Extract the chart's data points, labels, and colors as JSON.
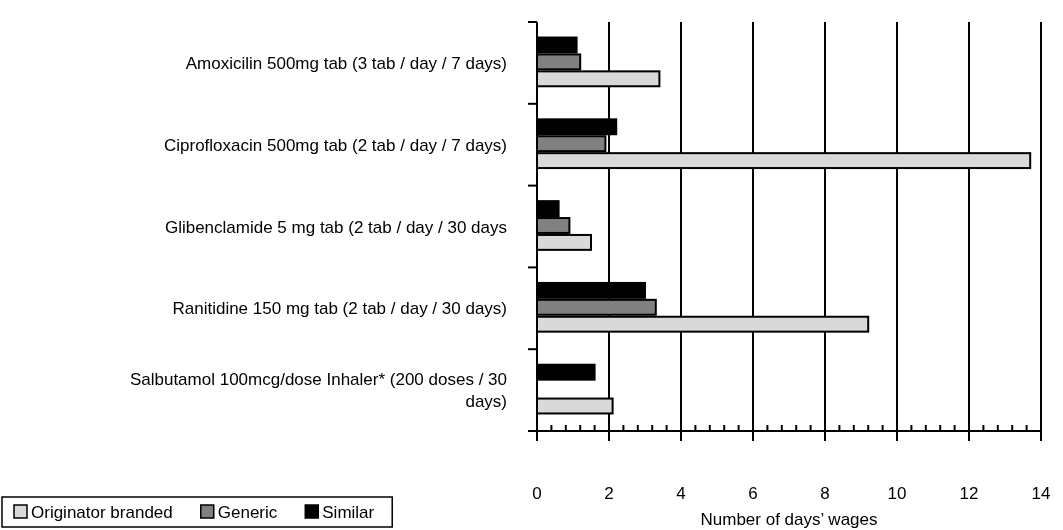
{
  "chart_data": {
    "type": "bar",
    "orientation": "horizontal",
    "xlabel": "Number of days’ wages",
    "categories": [
      "Amoxicilin 500mg tab (3 tab / day / 7 days)",
      "Ciprofloxacin 500mg tab (2 tab / day / 7 days)",
      "Glibenclamide 5 mg tab (2 tab / day / 30 days",
      "Ranitidine 150 mg tab (2 tab / day / 30 days)",
      "Salbutamol 100mcg/dose Inhaler* (200 doses / 30 days)"
    ],
    "series": [
      {
        "name": "Originator branded",
        "color": "#d9d9d9",
        "values": [
          3.4,
          13.7,
          1.5,
          9.2,
          2.1
        ]
      },
      {
        "name": "Generic",
        "color": "#808080",
        "values": [
          1.2,
          1.9,
          0.9,
          3.3,
          null
        ]
      },
      {
        "name": "Similar",
        "color": "#000000",
        "values": [
          1.1,
          2.2,
          0.6,
          3.0,
          1.6
        ]
      }
    ],
    "xlim": [
      0,
      14
    ],
    "xticks": [
      0,
      {
        "value": 0.4,
        "label": null
      },
      {
        "value": 0.8,
        "label": null
      },
      {
        "value": 1.2,
        "label": null
      },
      {
        "value": 1.6,
        "label": null
      },
      2,
      {
        "value": 2.4,
        "label": null
      },
      {
        "value": 2.8,
        "label": null
      },
      {
        "value": 3.2,
        "label": null
      },
      {
        "value": 3.6,
        "label": null
      },
      4,
      {
        "value": 4.4,
        "label": null
      },
      {
        "value": 4.8,
        "label": null
      },
      {
        "value": 5.2,
        "label": null
      },
      {
        "value": 5.6,
        "label": null
      },
      6,
      {
        "value": 6.4,
        "label": null
      },
      {
        "value": 6.8,
        "label": null
      },
      {
        "value": 7.2,
        "label": null
      },
      {
        "value": 7.6,
        "label": null
      },
      8,
      {
        "value": 8.4,
        "label": null
      },
      {
        "value": 8.8,
        "label": null
      },
      {
        "value": 9.2,
        "label": null
      },
      {
        "value": 9.6,
        "label": null
      },
      10,
      {
        "value": 10.4,
        "label": null
      },
      {
        "value": 10.8,
        "label": null
      },
      {
        "value": 11.2,
        "label": null
      },
      {
        "value": 11.6,
        "label": null
      },
      12,
      {
        "value": 12.4,
        "label": null
      },
      {
        "value": 12.8,
        "label": null
      },
      {
        "value": 13.2,
        "label": null
      },
      {
        "value": 13.6,
        "label": null
      },
      14
    ],
    "grid": "x",
    "legend": "bottom left"
  }
}
